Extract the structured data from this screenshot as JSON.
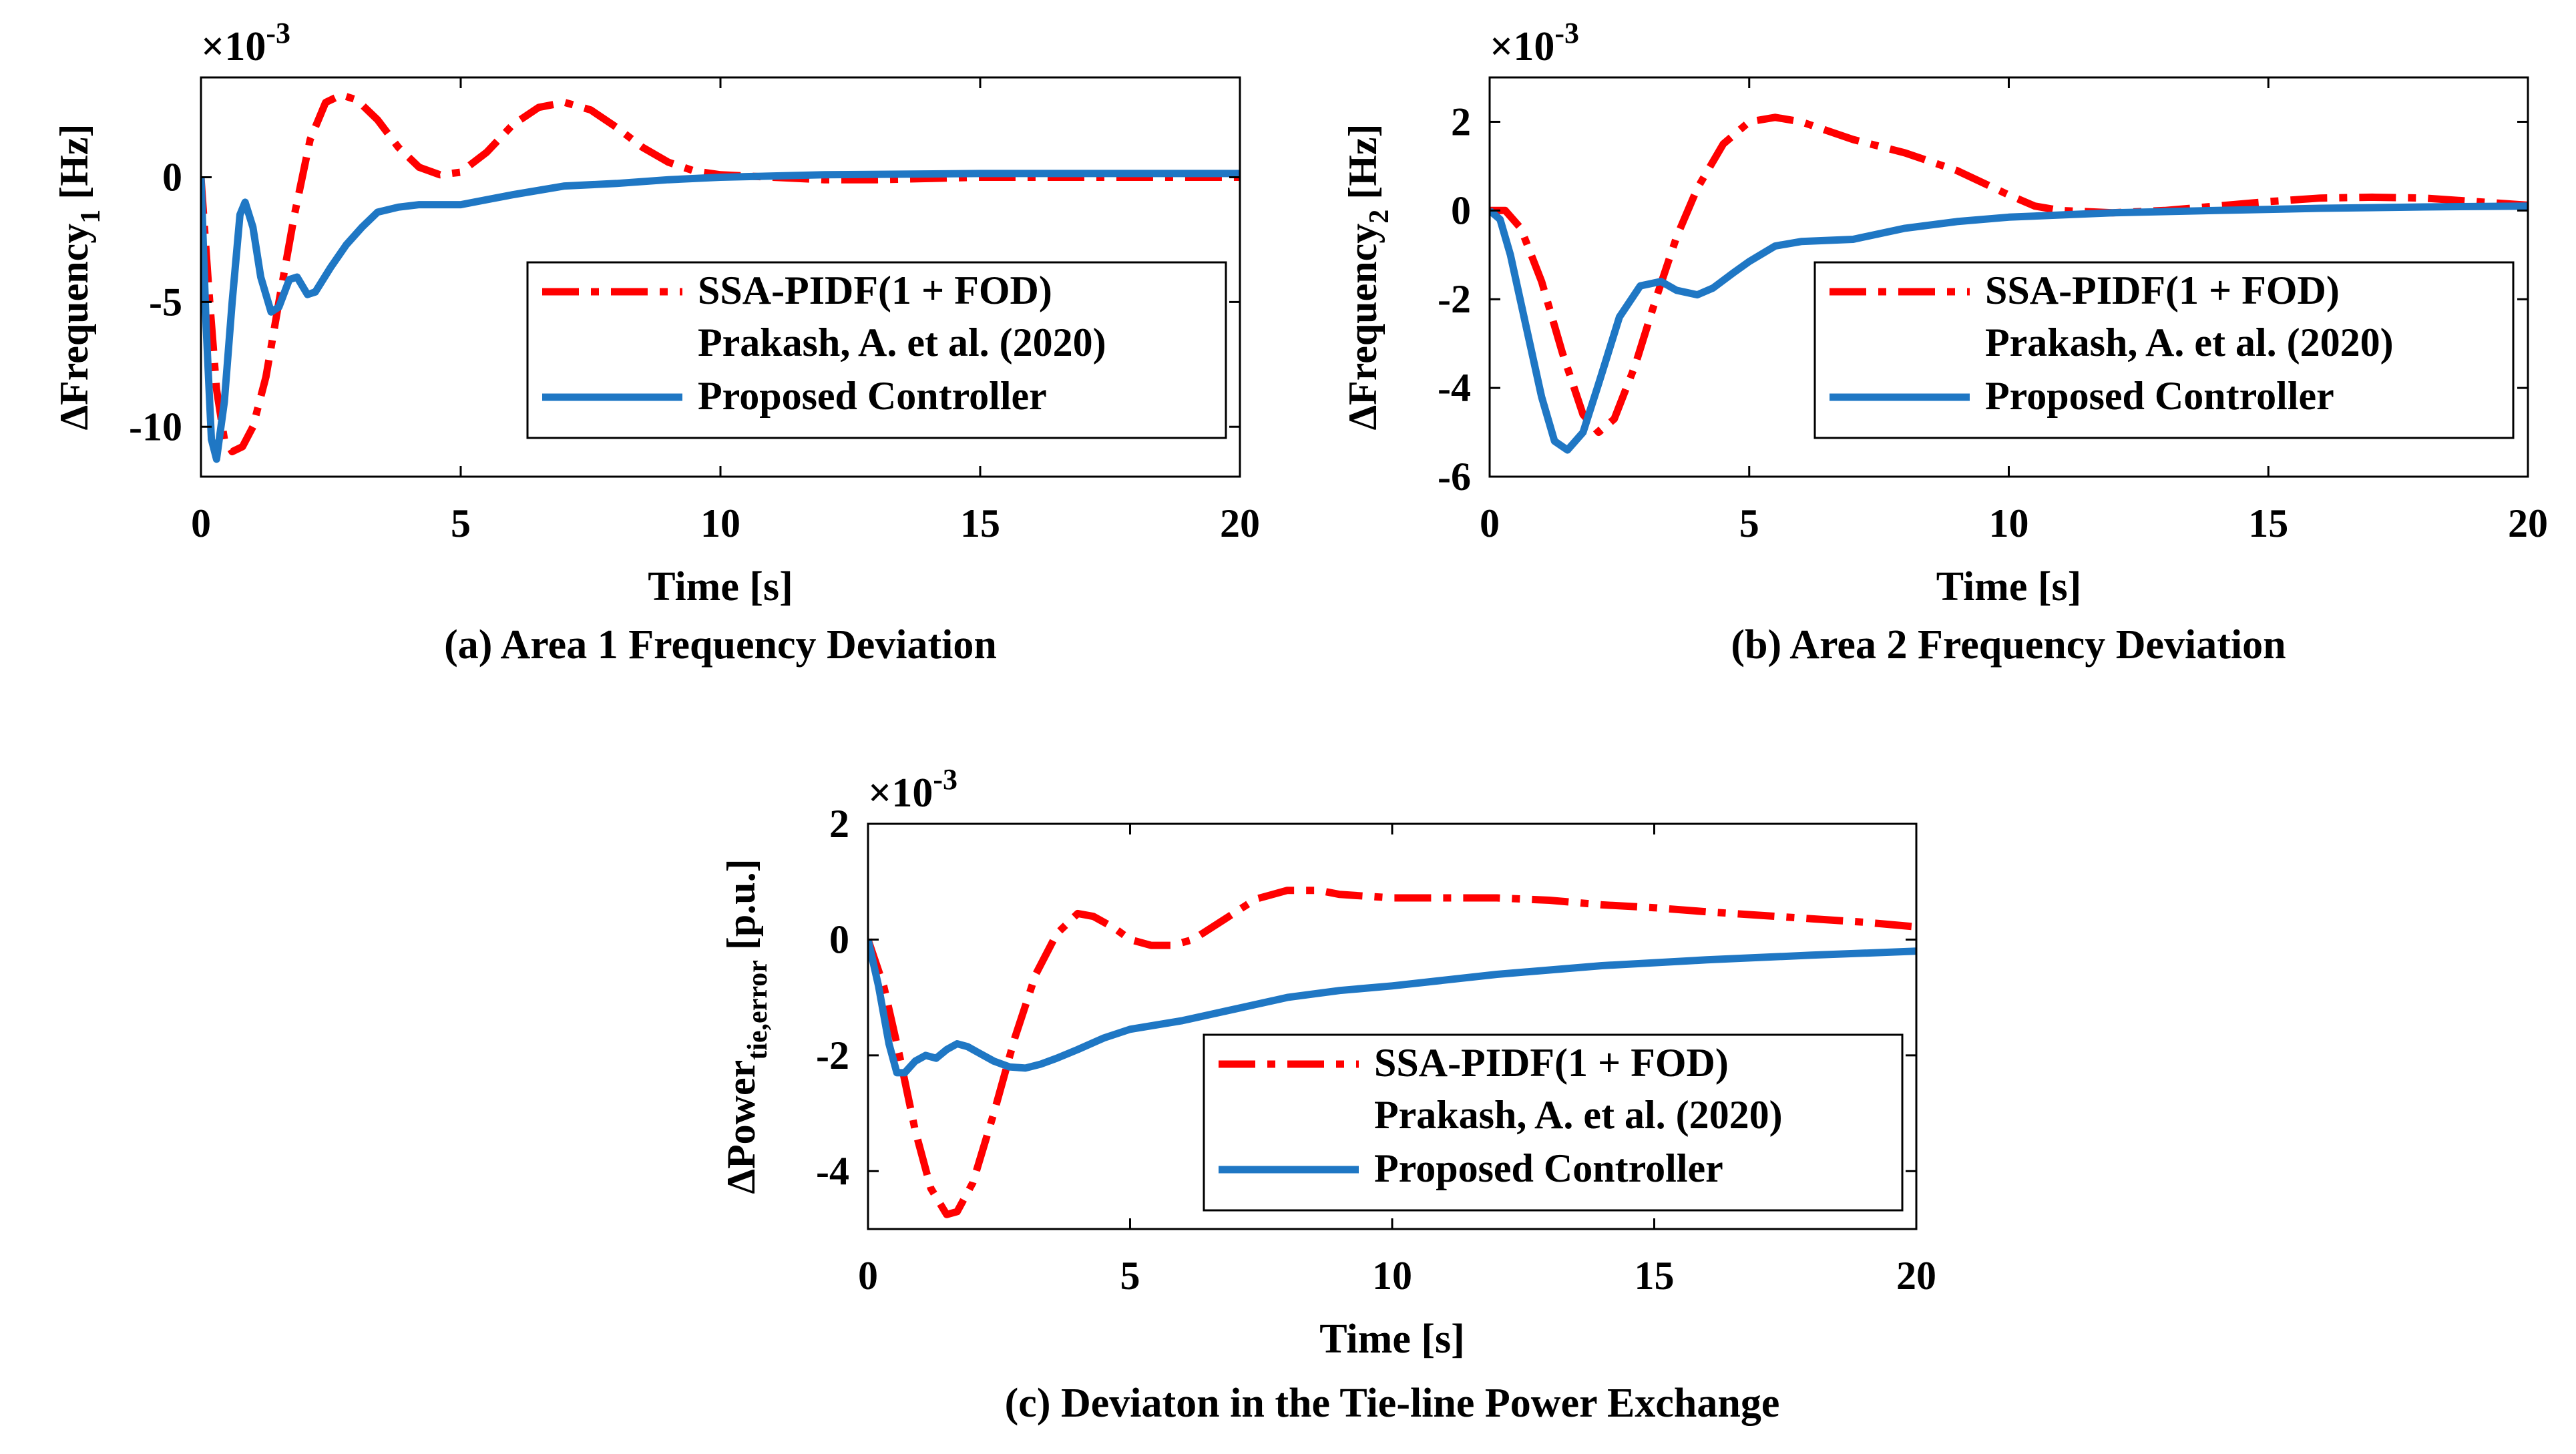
{
  "chart_data": [
    {
      "type": "line",
      "caption": "(a) Area 1 Frequency Deviation",
      "multiplier_base": "×10",
      "multiplier_exp": "-3",
      "ylabel_prefix": "ΔFrequency",
      "ylabel_sub": "1",
      "ylabel_suffix": " [Hz]",
      "xlabel": "Time [s]",
      "xlim": [
        0,
        20
      ],
      "ylim": [
        -12,
        4
      ],
      "xticks": [
        0,
        5,
        10,
        15,
        20
      ],
      "yticks": [
        -10,
        -5,
        0
      ],
      "legend": {
        "position": "bottom-right",
        "series1_line1": "SSA-PIDF(1 + FOD)",
        "series1_line2": "Prakash, A. et al. (2020)",
        "series2": "Proposed Controller"
      },
      "series": [
        {
          "name": "SSA-PIDF(1 + FOD) Prakash, A. et al. (2020)",
          "color": "#ff0000",
          "style": "dash-dot",
          "x": [
            0,
            0.15,
            0.3,
            0.45,
            0.6,
            0.8,
            1.0,
            1.25,
            1.5,
            1.8,
            2.1,
            2.4,
            2.7,
            3.0,
            3.4,
            3.8,
            4.2,
            4.6,
            5.0,
            5.5,
            6.0,
            6.5,
            7.0,
            7.5,
            8.0,
            8.5,
            9.0,
            9.5,
            10.0,
            11.0,
            12.0,
            13.0,
            14.0,
            15.0,
            16.0,
            17.0,
            18.0,
            20.0
          ],
          "y": [
            0,
            -4.5,
            -8.5,
            -10.5,
            -11.0,
            -10.8,
            -10.0,
            -8.0,
            -5.0,
            -1.5,
            1.5,
            3.0,
            3.3,
            3.1,
            2.3,
            1.2,
            0.4,
            0.1,
            0.2,
            1.0,
            2.1,
            2.8,
            3.0,
            2.7,
            2.0,
            1.2,
            0.6,
            0.25,
            0.1,
            0.0,
            -0.1,
            -0.1,
            -0.05,
            0.0,
            0.0,
            0.0,
            0.0,
            0.0
          ]
        },
        {
          "name": "Proposed Controller",
          "color": "#1f77c4",
          "style": "solid",
          "x": [
            0,
            0.1,
            0.2,
            0.3,
            0.45,
            0.6,
            0.75,
            0.85,
            1.0,
            1.15,
            1.35,
            1.5,
            1.7,
            1.85,
            2.05,
            2.2,
            2.5,
            2.8,
            3.1,
            3.4,
            3.8,
            4.2,
            4.6,
            5.0,
            5.5,
            6.0,
            7.0,
            8.0,
            9.0,
            10.0,
            12.0,
            15.0,
            17.0,
            20.0
          ],
          "y": [
            0,
            -6.0,
            -10.5,
            -11.3,
            -9.0,
            -5.0,
            -1.5,
            -1.0,
            -2.0,
            -4.0,
            -5.4,
            -5.2,
            -4.1,
            -4.0,
            -4.7,
            -4.6,
            -3.6,
            -2.7,
            -2.0,
            -1.4,
            -1.2,
            -1.1,
            -1.1,
            -1.1,
            -0.9,
            -0.7,
            -0.35,
            -0.25,
            -0.1,
            0.0,
            0.1,
            0.15,
            0.15,
            0.15
          ]
        }
      ]
    },
    {
      "type": "line",
      "caption": "(b) Area 2 Frequency Deviation",
      "multiplier_base": "×10",
      "multiplier_exp": "-3",
      "ylabel_prefix": "ΔFrequency",
      "ylabel_sub": "2",
      "ylabel_suffix": " [Hz]",
      "xlabel": "Time [s]",
      "xlim": [
        0,
        20
      ],
      "ylim": [
        -6,
        3
      ],
      "xticks": [
        0,
        5,
        10,
        15,
        20
      ],
      "yticks": [
        -6,
        -4,
        -2,
        0,
        2
      ],
      "legend": {
        "position": "bottom-right",
        "series1_line1": "SSA-PIDF(1 + FOD)",
        "series1_line2": "Prakash, A. et al. (2020)",
        "series2": "Proposed Controller"
      },
      "series": [
        {
          "name": "SSA-PIDF(1 + FOD) Prakash, A. et al. (2020)",
          "color": "#ff0000",
          "style": "dash-dot",
          "x": [
            0,
            0.3,
            0.6,
            1.0,
            1.4,
            1.8,
            2.1,
            2.4,
            2.8,
            3.2,
            3.6,
            4.0,
            4.5,
            5.0,
            5.5,
            6.0,
            6.5,
            7.0,
            7.5,
            8.0,
            9.0,
            10.0,
            10.5,
            11.0,
            12.0,
            13.0,
            14.0,
            15.0,
            16.0,
            17.0,
            18.0,
            19.0,
            20.0
          ],
          "y": [
            0,
            0.0,
            -0.4,
            -1.6,
            -3.2,
            -4.6,
            -5.0,
            -4.7,
            -3.5,
            -2.0,
            -0.6,
            0.5,
            1.5,
            2.0,
            2.1,
            2.0,
            1.8,
            1.6,
            1.45,
            1.3,
            0.9,
            0.35,
            0.1,
            0.0,
            -0.05,
            0.0,
            0.1,
            0.2,
            0.28,
            0.3,
            0.28,
            0.2,
            0.12
          ]
        },
        {
          "name": "Proposed Controller",
          "color": "#1f77c4",
          "style": "solid",
          "x": [
            0,
            0.2,
            0.4,
            0.7,
            1.0,
            1.25,
            1.5,
            1.8,
            2.1,
            2.5,
            2.9,
            3.3,
            3.6,
            4.0,
            4.3,
            4.7,
            5.0,
            5.5,
            6.0,
            7.0,
            8.0,
            9.0,
            10.0,
            12.0,
            14.0,
            16.0,
            18.0,
            20.0
          ],
          "y": [
            0,
            -0.2,
            -1.0,
            -2.6,
            -4.2,
            -5.2,
            -5.4,
            -5.0,
            -3.9,
            -2.4,
            -1.7,
            -1.6,
            -1.8,
            -1.9,
            -1.75,
            -1.4,
            -1.15,
            -0.8,
            -0.7,
            -0.65,
            -0.4,
            -0.25,
            -0.15,
            -0.05,
            0.0,
            0.05,
            0.08,
            0.1
          ]
        }
      ]
    },
    {
      "type": "line",
      "caption": "(c) Deviaton in the Tie-line Power Exchange",
      "multiplier_base": "×10",
      "multiplier_exp": "-3",
      "ylabel_prefix": "ΔPower",
      "ylabel_sub": "tie,error",
      "ylabel_suffix": " [p.u.]",
      "xlabel": "Time [s]",
      "xlim": [
        0,
        20
      ],
      "ylim": [
        -5,
        2
      ],
      "xticks": [
        0,
        5,
        10,
        15,
        20
      ],
      "yticks": [
        -4,
        -2,
        0,
        2
      ],
      "legend": {
        "position": "bottom-right",
        "series1_line1": "SSA-PIDF(1 + FOD)",
        "series1_line2": "Prakash, A. et al. (2020)",
        "series2": "Proposed Controller"
      },
      "series": [
        {
          "name": "SSA-PIDF(1 + FOD) Prakash, A. et al. (2020)",
          "color": "#ff0000",
          "style": "dash-dot",
          "x": [
            0,
            0.3,
            0.6,
            0.9,
            1.2,
            1.5,
            1.7,
            2.0,
            2.4,
            2.8,
            3.2,
            3.6,
            4.0,
            4.3,
            4.7,
            5.0,
            5.4,
            5.8,
            6.2,
            6.8,
            7.4,
            8.0,
            8.6,
            9.0,
            10.0,
            11.0,
            12.0,
            13.0,
            14.0,
            15.0,
            16.0,
            17.0,
            18.0,
            19.0,
            20.0
          ],
          "y": [
            0,
            -0.8,
            -2.0,
            -3.3,
            -4.3,
            -4.75,
            -4.7,
            -4.2,
            -3.0,
            -1.7,
            -0.6,
            0.1,
            0.45,
            0.4,
            0.2,
            0.0,
            -0.1,
            -0.1,
            0.0,
            0.35,
            0.7,
            0.85,
            0.85,
            0.78,
            0.72,
            0.72,
            0.72,
            0.68,
            0.6,
            0.55,
            0.48,
            0.42,
            0.36,
            0.3,
            0.22
          ]
        },
        {
          "name": "Proposed Controller",
          "color": "#1f77c4",
          "style": "solid",
          "x": [
            0,
            0.2,
            0.4,
            0.55,
            0.7,
            0.9,
            1.1,
            1.3,
            1.5,
            1.7,
            1.9,
            2.1,
            2.4,
            2.7,
            3.0,
            3.3,
            3.6,
            4.0,
            4.5,
            5.0,
            6.0,
            7.0,
            8.0,
            9.0,
            10.0,
            12.0,
            14.0,
            16.0,
            18.0,
            20.0
          ],
          "y": [
            0,
            -0.8,
            -1.8,
            -2.3,
            -2.3,
            -2.1,
            -2.0,
            -2.05,
            -1.9,
            -1.8,
            -1.85,
            -1.95,
            -2.1,
            -2.2,
            -2.22,
            -2.15,
            -2.05,
            -1.9,
            -1.7,
            -1.55,
            -1.4,
            -1.2,
            -1.0,
            -0.88,
            -0.8,
            -0.6,
            -0.45,
            -0.35,
            -0.27,
            -0.2
          ]
        }
      ]
    }
  ]
}
